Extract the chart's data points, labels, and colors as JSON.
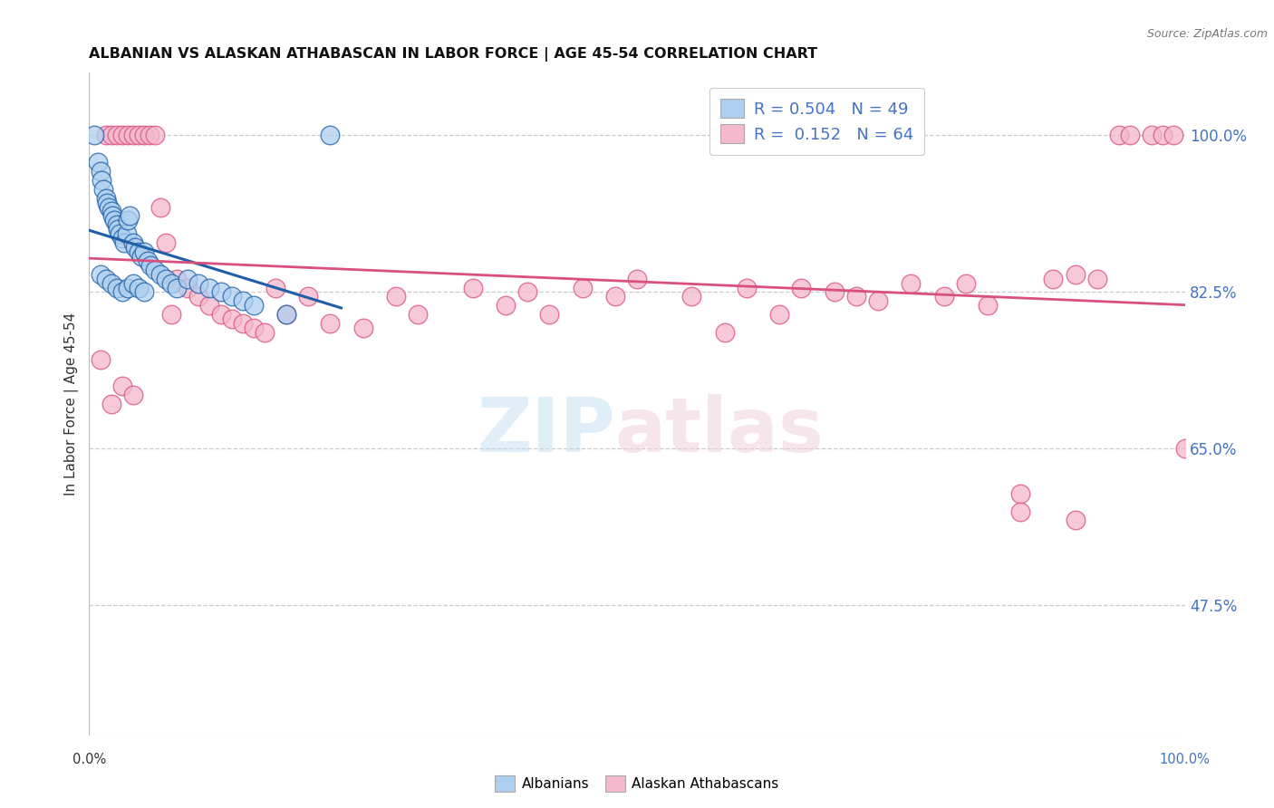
{
  "title": "ALBANIAN VS ALASKAN ATHABASCAN IN LABOR FORCE | AGE 45-54 CORRELATION CHART",
  "source": "Source: ZipAtlas.com",
  "ylabel": "In Labor Force | Age 45-54",
  "ylabel_ticks": [
    47.5,
    65.0,
    82.5,
    100.0
  ],
  "ylabel_tick_labels": [
    "47.5%",
    "65.0%",
    "82.5%",
    "100.0%"
  ],
  "xmin": 0.0,
  "xmax": 100.0,
  "ymin": 33.0,
  "ymax": 107.0,
  "legend_R_albanians": "0.504",
  "legend_N_albanians": "49",
  "legend_R_athabascan": "0.152",
  "legend_N_athabascan": "64",
  "albanians_color": "#AECFEF",
  "athabascan_color": "#F5B8CC",
  "trend_albanians_color": "#1E5FA8",
  "trend_athabascan_color": "#D94F7E",
  "albanians_x": [
    0.5,
    0.8,
    1.0,
    1.1,
    1.3,
    1.5,
    1.6,
    1.8,
    2.0,
    2.1,
    2.3,
    2.5,
    2.6,
    2.8,
    3.0,
    3.2,
    3.4,
    3.5,
    3.7,
    4.0,
    4.2,
    4.5,
    4.8,
    5.0,
    5.3,
    5.6,
    6.0,
    6.5,
    7.0,
    7.5,
    8.0,
    9.0,
    10.0,
    11.0,
    12.0,
    13.0,
    14.0,
    15.0,
    18.0,
    1.0,
    1.5,
    2.0,
    2.5,
    3.0,
    3.5,
    4.0,
    4.5,
    5.0,
    22.0
  ],
  "albanians_y": [
    100.0,
    97.0,
    96.0,
    95.0,
    94.0,
    93.0,
    92.5,
    92.0,
    91.5,
    91.0,
    90.5,
    90.0,
    89.5,
    89.0,
    88.5,
    88.0,
    89.0,
    90.5,
    91.0,
    88.0,
    87.5,
    87.0,
    86.5,
    87.0,
    86.0,
    85.5,
    85.0,
    84.5,
    84.0,
    83.5,
    83.0,
    84.0,
    83.5,
    83.0,
    82.5,
    82.0,
    81.5,
    81.0,
    80.0,
    84.5,
    84.0,
    83.5,
    83.0,
    82.5,
    83.0,
    83.5,
    83.0,
    82.5,
    100.0
  ],
  "athabascan_x": [
    1.5,
    2.0,
    2.5,
    3.0,
    3.5,
    4.0,
    4.5,
    5.0,
    5.5,
    6.0,
    6.5,
    7.0,
    7.5,
    8.0,
    9.0,
    10.0,
    11.0,
    12.0,
    13.0,
    14.0,
    15.0,
    16.0,
    17.0,
    18.0,
    20.0,
    22.0,
    25.0,
    28.0,
    30.0,
    35.0,
    38.0,
    40.0,
    42.0,
    45.0,
    48.0,
    50.0,
    55.0,
    58.0,
    60.0,
    63.0,
    65.0,
    68.0,
    70.0,
    72.0,
    75.0,
    78.0,
    80.0,
    82.0,
    85.0,
    88.0,
    90.0,
    92.0,
    94.0,
    95.0,
    97.0,
    98.0,
    99.0,
    100.0,
    85.0,
    90.0,
    1.0,
    2.0,
    3.0,
    4.0
  ],
  "athabascan_y": [
    100.0,
    100.0,
    100.0,
    100.0,
    100.0,
    100.0,
    100.0,
    100.0,
    100.0,
    100.0,
    92.0,
    88.0,
    80.0,
    84.0,
    83.0,
    82.0,
    81.0,
    80.0,
    79.5,
    79.0,
    78.5,
    78.0,
    83.0,
    80.0,
    82.0,
    79.0,
    78.5,
    82.0,
    80.0,
    83.0,
    81.0,
    82.5,
    80.0,
    83.0,
    82.0,
    84.0,
    82.0,
    78.0,
    83.0,
    80.0,
    83.0,
    82.5,
    82.0,
    81.5,
    83.5,
    82.0,
    83.5,
    81.0,
    60.0,
    84.0,
    84.5,
    84.0,
    100.0,
    100.0,
    100.0,
    100.0,
    100.0,
    65.0,
    58.0,
    57.0,
    75.0,
    70.0,
    72.0,
    71.0
  ]
}
